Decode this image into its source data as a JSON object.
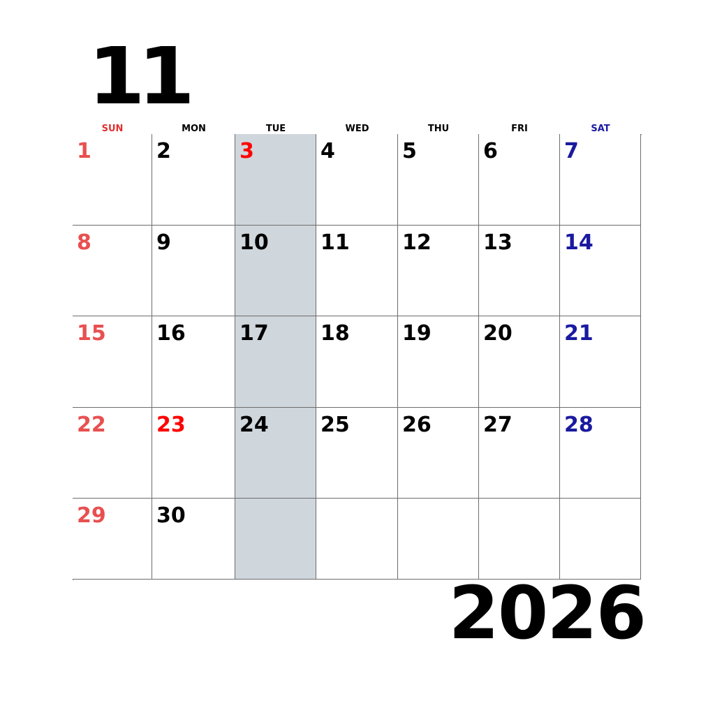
{
  "month": "11",
  "year": "2026",
  "colors": {
    "sunday": "#e85050",
    "holiday": "#ff0000",
    "saturday": "#1a1aa0",
    "weekday": "#000000",
    "header_sun": "#e03030",
    "header_sat": "#1a1aa0",
    "highlight": "#cfd6dc",
    "grid_line": "#6d6d6d"
  },
  "weekdays": [
    "SUN",
    "MON",
    "TUE",
    "WED",
    "THU",
    "FRI",
    "SAT"
  ],
  "highlight_column": "TUE",
  "weeks": [
    [
      {
        "day": "1",
        "type": "sunday"
      },
      {
        "day": "2",
        "type": "weekday"
      },
      {
        "day": "3",
        "type": "holiday"
      },
      {
        "day": "4",
        "type": "weekday"
      },
      {
        "day": "5",
        "type": "weekday"
      },
      {
        "day": "6",
        "type": "weekday"
      },
      {
        "day": "7",
        "type": "saturday"
      }
    ],
    [
      {
        "day": "8",
        "type": "sunday"
      },
      {
        "day": "9",
        "type": "weekday"
      },
      {
        "day": "10",
        "type": "weekday"
      },
      {
        "day": "11",
        "type": "weekday"
      },
      {
        "day": "12",
        "type": "weekday"
      },
      {
        "day": "13",
        "type": "weekday"
      },
      {
        "day": "14",
        "type": "saturday"
      }
    ],
    [
      {
        "day": "15",
        "type": "sunday"
      },
      {
        "day": "16",
        "type": "weekday"
      },
      {
        "day": "17",
        "type": "weekday"
      },
      {
        "day": "18",
        "type": "weekday"
      },
      {
        "day": "19",
        "type": "weekday"
      },
      {
        "day": "20",
        "type": "weekday"
      },
      {
        "day": "21",
        "type": "saturday"
      }
    ],
    [
      {
        "day": "22",
        "type": "sunday"
      },
      {
        "day": "23",
        "type": "holiday"
      },
      {
        "day": "24",
        "type": "weekday"
      },
      {
        "day": "25",
        "type": "weekday"
      },
      {
        "day": "26",
        "type": "weekday"
      },
      {
        "day": "27",
        "type": "weekday"
      },
      {
        "day": "28",
        "type": "saturday"
      }
    ],
    [
      {
        "day": "29",
        "type": "sunday"
      },
      {
        "day": "30",
        "type": "weekday"
      },
      {
        "day": "",
        "type": "empty"
      },
      {
        "day": "",
        "type": "empty"
      },
      {
        "day": "",
        "type": "empty"
      },
      {
        "day": "",
        "type": "empty"
      },
      {
        "day": "",
        "type": "empty"
      }
    ]
  ]
}
